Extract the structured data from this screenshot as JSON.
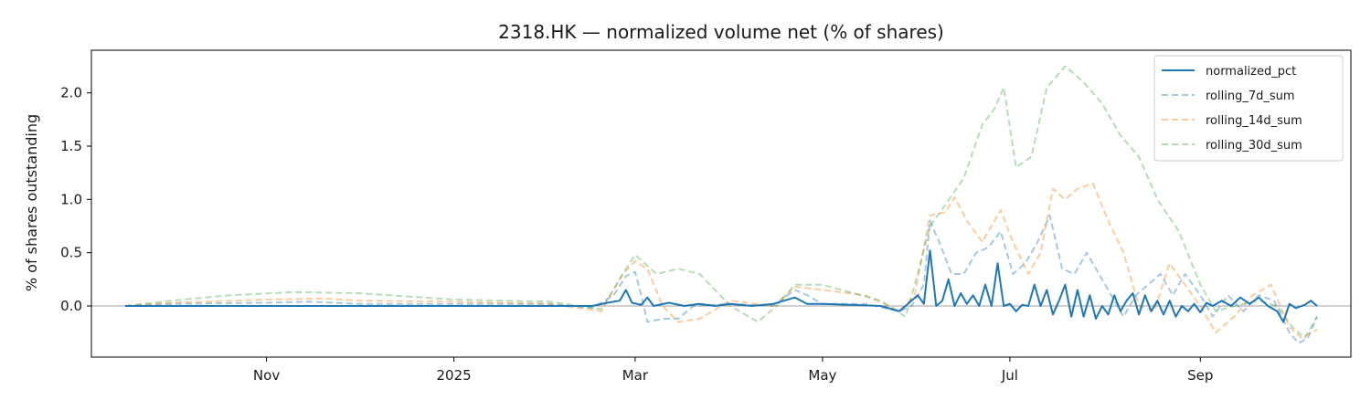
{
  "chart_data": {
    "type": "line",
    "title": "2318.HK — normalized volume net (% of shares)",
    "xlabel": "",
    "ylabel": "% of shares outstanding",
    "x_range": [
      "2024-09-16",
      "2025-10-09"
    ],
    "xlim": [
      "2024-09-05",
      "2025-10-20"
    ],
    "ylim": [
      -0.48,
      2.4
    ],
    "x_ticks": [
      {
        "date": "2024-11-01",
        "label": "Nov"
      },
      {
        "date": "2025-01-01",
        "label": "2025"
      },
      {
        "date": "2025-03-01",
        "label": "Mar"
      },
      {
        "date": "2025-05-01",
        "label": "May"
      },
      {
        "date": "2025-07-01",
        "label": "Jul"
      },
      {
        "date": "2025-09-01",
        "label": "Sep"
      }
    ],
    "y_ticks": [
      {
        "value": 0.0,
        "label": "0.0"
      },
      {
        "value": 0.5,
        "label": "0.5"
      },
      {
        "value": 1.0,
        "label": "1.0"
      },
      {
        "value": 1.5,
        "label": "1.5"
      },
      {
        "value": 2.0,
        "label": "2.0"
      }
    ],
    "zero_line": true,
    "grid": false,
    "legend_position": "top-right",
    "series": [
      {
        "name": "normalized_pct",
        "color": "#1f77b4",
        "dash": "solid",
        "opacity": 1,
        "points": [
          [
            "2024-09-16",
            0.0
          ],
          [
            "2024-10-01",
            0.0
          ],
          [
            "2024-11-01",
            0.0
          ],
          [
            "2024-12-01",
            0.0
          ],
          [
            "2025-01-01",
            0.0
          ],
          [
            "2025-02-01",
            0.0
          ],
          [
            "2025-02-15",
            0.0
          ],
          [
            "2025-02-20",
            0.03
          ],
          [
            "2025-02-24",
            0.05
          ],
          [
            "2025-02-26",
            0.15
          ],
          [
            "2025-02-28",
            0.03
          ],
          [
            "2025-03-03",
            0.01
          ],
          [
            "2025-03-05",
            0.08
          ],
          [
            "2025-03-07",
            0.0
          ],
          [
            "2025-03-12",
            0.03
          ],
          [
            "2025-03-17",
            0.0
          ],
          [
            "2025-03-22",
            0.02
          ],
          [
            "2025-03-27",
            0.0
          ],
          [
            "2025-04-01",
            0.02
          ],
          [
            "2025-04-08",
            0.0
          ],
          [
            "2025-04-15",
            0.02
          ],
          [
            "2025-04-22",
            0.08
          ],
          [
            "2025-04-26",
            0.02
          ],
          [
            "2025-05-01",
            0.02
          ],
          [
            "2025-05-10",
            0.01
          ],
          [
            "2025-05-20",
            0.0
          ],
          [
            "2025-05-26",
            -0.05
          ],
          [
            "2025-05-28",
            0.0
          ],
          [
            "2025-06-01",
            0.1
          ],
          [
            "2025-06-03",
            0.02
          ],
          [
            "2025-06-05",
            0.52
          ],
          [
            "2025-06-07",
            0.0
          ],
          [
            "2025-06-09",
            0.05
          ],
          [
            "2025-06-11",
            0.25
          ],
          [
            "2025-06-13",
            0.0
          ],
          [
            "2025-06-15",
            0.12
          ],
          [
            "2025-06-17",
            0.02
          ],
          [
            "2025-06-19",
            0.1
          ],
          [
            "2025-06-21",
            0.0
          ],
          [
            "2025-06-23",
            0.2
          ],
          [
            "2025-06-25",
            0.0
          ],
          [
            "2025-06-27",
            0.4
          ],
          [
            "2025-06-29",
            0.0
          ],
          [
            "2025-07-01",
            0.02
          ],
          [
            "2025-07-03",
            -0.05
          ],
          [
            "2025-07-05",
            0.01
          ],
          [
            "2025-07-07",
            0.0
          ],
          [
            "2025-07-09",
            0.2
          ],
          [
            "2025-07-11",
            0.0
          ],
          [
            "2025-07-13",
            0.15
          ],
          [
            "2025-07-15",
            -0.08
          ],
          [
            "2025-07-17",
            0.05
          ],
          [
            "2025-07-19",
            0.2
          ],
          [
            "2025-07-21",
            -0.1
          ],
          [
            "2025-07-23",
            0.15
          ],
          [
            "2025-07-25",
            -0.1
          ],
          [
            "2025-07-27",
            0.1
          ],
          [
            "2025-07-29",
            -0.12
          ],
          [
            "2025-07-31",
            0.0
          ],
          [
            "2025-08-02",
            -0.08
          ],
          [
            "2025-08-04",
            0.1
          ],
          [
            "2025-08-06",
            -0.05
          ],
          [
            "2025-08-08",
            0.05
          ],
          [
            "2025-08-10",
            0.12
          ],
          [
            "2025-08-12",
            -0.08
          ],
          [
            "2025-08-14",
            0.1
          ],
          [
            "2025-08-16",
            -0.05
          ],
          [
            "2025-08-18",
            0.05
          ],
          [
            "2025-08-20",
            -0.08
          ],
          [
            "2025-08-22",
            0.05
          ],
          [
            "2025-08-24",
            -0.1
          ],
          [
            "2025-08-26",
            0.0
          ],
          [
            "2025-08-28",
            -0.05
          ],
          [
            "2025-08-30",
            0.02
          ],
          [
            "2025-09-01",
            -0.06
          ],
          [
            "2025-09-03",
            0.03
          ],
          [
            "2025-09-05",
            0.0
          ],
          [
            "2025-09-08",
            0.05
          ],
          [
            "2025-09-11",
            0.0
          ],
          [
            "2025-09-14",
            0.08
          ],
          [
            "2025-09-17",
            0.02
          ],
          [
            "2025-09-20",
            0.08
          ],
          [
            "2025-09-23",
            0.0
          ],
          [
            "2025-09-26",
            -0.05
          ],
          [
            "2025-09-28",
            -0.15
          ],
          [
            "2025-09-30",
            0.02
          ],
          [
            "2025-10-02",
            -0.02
          ],
          [
            "2025-10-05",
            0.01
          ],
          [
            "2025-10-07",
            0.05
          ],
          [
            "2025-10-09",
            0.0
          ]
        ]
      },
      {
        "name": "rolling_7d_sum",
        "color": "#1f77b4",
        "dash": "dashed",
        "opacity": 0.4,
        "points": [
          [
            "2024-09-16",
            0.0
          ],
          [
            "2024-10-01",
            0.02
          ],
          [
            "2024-11-01",
            0.03
          ],
          [
            "2024-11-15",
            0.04
          ],
          [
            "2024-12-01",
            0.02
          ],
          [
            "2025-01-01",
            0.02
          ],
          [
            "2025-02-01",
            0.02
          ],
          [
            "2025-02-15",
            -0.02
          ],
          [
            "2025-02-22",
            0.1
          ],
          [
            "2025-02-26",
            0.28
          ],
          [
            "2025-03-01",
            0.32
          ],
          [
            "2025-03-03",
            0.1
          ],
          [
            "2025-03-05",
            -0.15
          ],
          [
            "2025-03-10",
            -0.12
          ],
          [
            "2025-03-15",
            -0.12
          ],
          [
            "2025-03-20",
            0.0
          ],
          [
            "2025-04-01",
            0.02
          ],
          [
            "2025-04-15",
            0.0
          ],
          [
            "2025-04-22",
            0.15
          ],
          [
            "2025-04-26",
            0.1
          ],
          [
            "2025-05-01",
            0.02
          ],
          [
            "2025-05-15",
            0.02
          ],
          [
            "2025-05-26",
            -0.05
          ],
          [
            "2025-05-30",
            0.0
          ],
          [
            "2025-06-03",
            0.2
          ],
          [
            "2025-06-05",
            0.8
          ],
          [
            "2025-06-08",
            0.6
          ],
          [
            "2025-06-12",
            0.3
          ],
          [
            "2025-06-16",
            0.3
          ],
          [
            "2025-06-20",
            0.5
          ],
          [
            "2025-06-24",
            0.55
          ],
          [
            "2025-06-28",
            0.7
          ],
          [
            "2025-07-02",
            0.3
          ],
          [
            "2025-07-06",
            0.4
          ],
          [
            "2025-07-10",
            0.6
          ],
          [
            "2025-07-14",
            0.85
          ],
          [
            "2025-07-18",
            0.35
          ],
          [
            "2025-07-22",
            0.3
          ],
          [
            "2025-07-26",
            0.5
          ],
          [
            "2025-07-30",
            0.3
          ],
          [
            "2025-08-03",
            0.1
          ],
          [
            "2025-08-07",
            -0.1
          ],
          [
            "2025-08-11",
            0.1
          ],
          [
            "2025-08-15",
            0.2
          ],
          [
            "2025-08-19",
            0.3
          ],
          [
            "2025-08-23",
            0.1
          ],
          [
            "2025-08-27",
            0.3
          ],
          [
            "2025-09-01",
            0.1
          ],
          [
            "2025-09-05",
            -0.1
          ],
          [
            "2025-09-10",
            0.1
          ],
          [
            "2025-09-15",
            -0.05
          ],
          [
            "2025-09-20",
            0.1
          ],
          [
            "2025-09-25",
            0.05
          ],
          [
            "2025-09-30",
            -0.25
          ],
          [
            "2025-10-03",
            -0.35
          ],
          [
            "2025-10-06",
            -0.3
          ],
          [
            "2025-10-09",
            -0.1
          ]
        ]
      },
      {
        "name": "rolling_14d_sum",
        "color": "#ff7f0e",
        "dash": "dashed",
        "opacity": 0.4,
        "points": [
          [
            "2024-09-16",
            0.0
          ],
          [
            "2024-10-01",
            0.03
          ],
          [
            "2024-11-01",
            0.06
          ],
          [
            "2024-11-20",
            0.07
          ],
          [
            "2024-12-01",
            0.05
          ],
          [
            "2025-01-01",
            0.04
          ],
          [
            "2025-02-01",
            0.02
          ],
          [
            "2025-02-18",
            -0.05
          ],
          [
            "2025-02-25",
            0.3
          ],
          [
            "2025-03-01",
            0.42
          ],
          [
            "2025-03-05",
            0.35
          ],
          [
            "2025-03-10",
            0.0
          ],
          [
            "2025-03-15",
            -0.15
          ],
          [
            "2025-03-22",
            -0.12
          ],
          [
            "2025-04-01",
            0.05
          ],
          [
            "2025-04-15",
            0.0
          ],
          [
            "2025-04-22",
            0.18
          ],
          [
            "2025-05-01",
            0.15
          ],
          [
            "2025-05-15",
            0.1
          ],
          [
            "2025-05-26",
            -0.05
          ],
          [
            "2025-05-31",
            0.1
          ],
          [
            "2025-06-05",
            0.85
          ],
          [
            "2025-06-10",
            0.88
          ],
          [
            "2025-06-13",
            1.02
          ],
          [
            "2025-06-17",
            0.8
          ],
          [
            "2025-06-22",
            0.6
          ],
          [
            "2025-06-28",
            0.9
          ],
          [
            "2025-07-02",
            0.6
          ],
          [
            "2025-07-07",
            0.3
          ],
          [
            "2025-07-11",
            0.5
          ],
          [
            "2025-07-15",
            1.1
          ],
          [
            "2025-07-19",
            1.0
          ],
          [
            "2025-07-23",
            1.1
          ],
          [
            "2025-07-28",
            1.15
          ],
          [
            "2025-08-02",
            0.8
          ],
          [
            "2025-08-07",
            0.5
          ],
          [
            "2025-08-12",
            0.0
          ],
          [
            "2025-08-17",
            -0.05
          ],
          [
            "2025-08-22",
            0.4
          ],
          [
            "2025-08-27",
            0.2
          ],
          [
            "2025-09-01",
            0.0
          ],
          [
            "2025-09-06",
            -0.25
          ],
          [
            "2025-09-12",
            -0.1
          ],
          [
            "2025-09-18",
            0.1
          ],
          [
            "2025-09-24",
            0.2
          ],
          [
            "2025-09-30",
            -0.2
          ],
          [
            "2025-10-04",
            -0.3
          ],
          [
            "2025-10-09",
            -0.22
          ]
        ]
      },
      {
        "name": "rolling_30d_sum",
        "color": "#2ca02c",
        "dash": "dashed",
        "opacity": 0.35,
        "points": [
          [
            "2024-09-16",
            0.0
          ],
          [
            "2024-10-01",
            0.05
          ],
          [
            "2024-10-20",
            0.1
          ],
          [
            "2024-11-10",
            0.13
          ],
          [
            "2024-12-01",
            0.12
          ],
          [
            "2025-01-01",
            0.06
          ],
          [
            "2025-02-01",
            0.04
          ],
          [
            "2025-02-18",
            -0.03
          ],
          [
            "2025-02-25",
            0.3
          ],
          [
            "2025-03-01",
            0.48
          ],
          [
            "2025-03-08",
            0.3
          ],
          [
            "2025-03-15",
            0.35
          ],
          [
            "2025-03-22",
            0.3
          ],
          [
            "2025-04-01",
            0.0
          ],
          [
            "2025-04-10",
            -0.15
          ],
          [
            "2025-04-16",
            0.0
          ],
          [
            "2025-04-22",
            0.2
          ],
          [
            "2025-05-01",
            0.2
          ],
          [
            "2025-05-20",
            0.05
          ],
          [
            "2025-05-28",
            -0.1
          ],
          [
            "2025-06-01",
            0.3
          ],
          [
            "2025-06-05",
            0.75
          ],
          [
            "2025-06-10",
            0.95
          ],
          [
            "2025-06-16",
            1.2
          ],
          [
            "2025-06-22",
            1.7
          ],
          [
            "2025-06-26",
            1.85
          ],
          [
            "2025-06-29",
            2.05
          ],
          [
            "2025-07-03",
            1.3
          ],
          [
            "2025-07-08",
            1.4
          ],
          [
            "2025-07-13",
            2.05
          ],
          [
            "2025-07-19",
            2.25
          ],
          [
            "2025-07-25",
            2.1
          ],
          [
            "2025-07-31",
            1.9
          ],
          [
            "2025-08-06",
            1.6
          ],
          [
            "2025-08-12",
            1.4
          ],
          [
            "2025-08-18",
            1.0
          ],
          [
            "2025-08-25",
            0.7
          ],
          [
            "2025-09-01",
            0.2
          ],
          [
            "2025-09-06",
            -0.05
          ],
          [
            "2025-09-12",
            0.0
          ],
          [
            "2025-09-20",
            0.05
          ],
          [
            "2025-09-26",
            0.0
          ],
          [
            "2025-10-01",
            -0.2
          ],
          [
            "2025-10-05",
            -0.3
          ],
          [
            "2025-10-09",
            -0.1
          ]
        ]
      }
    ]
  }
}
